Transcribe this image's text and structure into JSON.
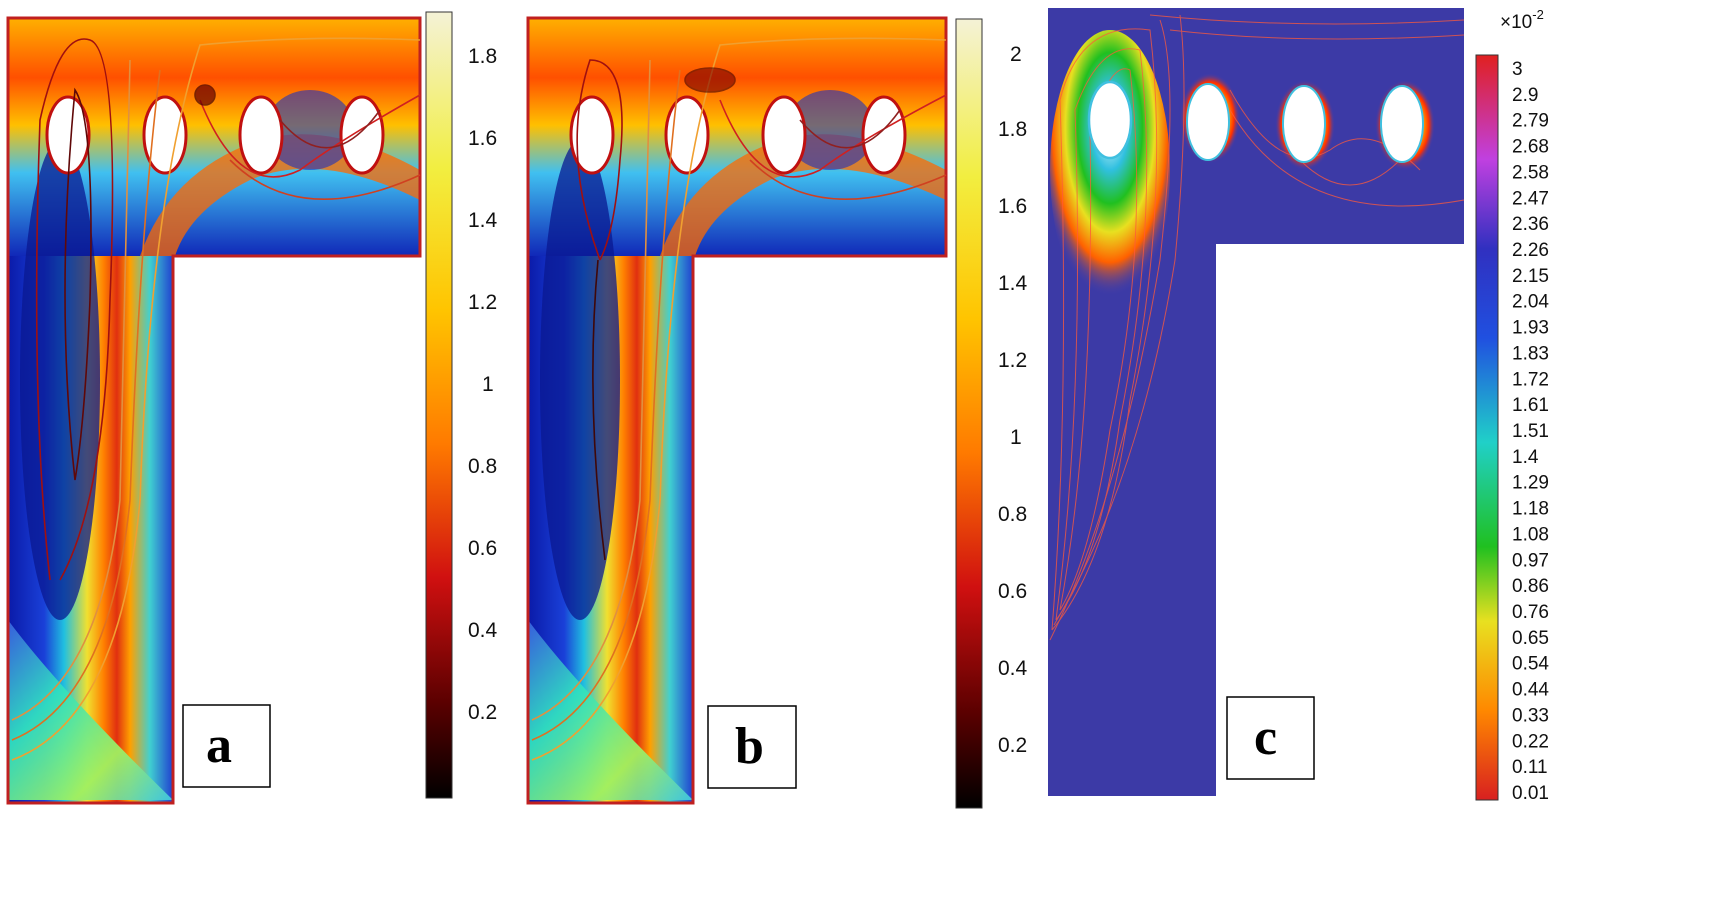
{
  "figure": {
    "panels": [
      {
        "id": "a",
        "letter": "a",
        "colorbar": {
          "ticks": [
            "1.8",
            "1.6",
            "1.4",
            "1.2",
            "1",
            "0.8",
            "0.6",
            "0.4",
            "0.2"
          ],
          "range": [
            0,
            1.9
          ]
        }
      },
      {
        "id": "b",
        "letter": "b",
        "colorbar": {
          "ticks": [
            "2",
            "1.8",
            "1.6",
            "1.4",
            "1.2",
            "1",
            "0.8",
            "0.6",
            "0.4",
            "0.2"
          ],
          "range": [
            0,
            2.1
          ]
        }
      },
      {
        "id": "c",
        "letter": "c",
        "colorbar": {
          "exponent": "×10",
          "exponent_power": "-2",
          "ticks": [
            "3",
            "2.9",
            "2.79",
            "2.68",
            "2.58",
            "2.47",
            "2.36",
            "2.26",
            "2.15",
            "2.04",
            "1.93",
            "1.83",
            "1.72",
            "1.61",
            "1.51",
            "1.4",
            "1.29",
            "1.18",
            "1.08",
            "0.97",
            "0.86",
            "0.76",
            "0.65",
            "0.54",
            "0.44",
            "0.33",
            "0.22",
            "0.11",
            "0.01"
          ],
          "range": [
            0.01,
            3
          ]
        }
      }
    ]
  }
}
